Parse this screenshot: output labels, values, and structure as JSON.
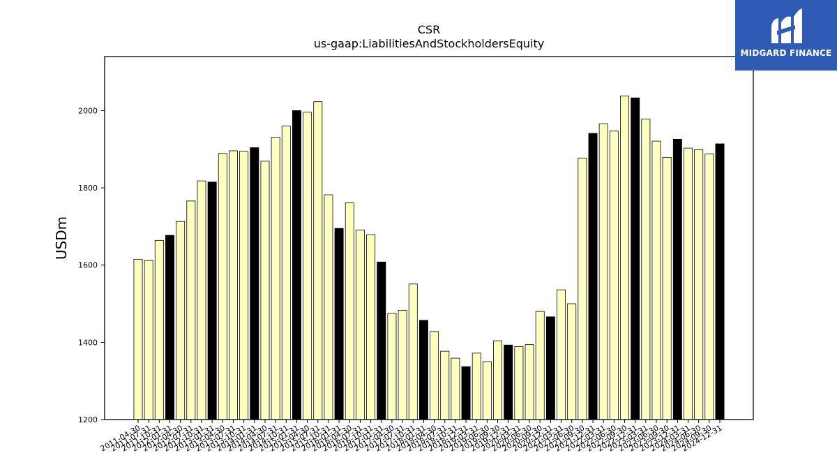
{
  "logo": {
    "text": "MIDGARD FINANCE"
  },
  "colors": {
    "highlight": "#000000",
    "normal": "#ffffc0",
    "edge": "#000000",
    "logo_bg": "#2f5bb4"
  },
  "chart_data": {
    "type": "bar",
    "title": "CSR",
    "subtitle": "us-gaap:LiabilitiesAndStockholdersEquity",
    "xlabel": "",
    "ylabel": "USDm",
    "ylim": [
      1200,
      2140
    ],
    "yticks": [
      1200,
      1400,
      1600,
      1800,
      2000
    ],
    "grid": false,
    "categories": [
      "2011-04-30",
      "2011-07-31",
      "2011-10-31",
      "2012-01-31",
      "2012-04-30",
      "2012-07-31",
      "2012-10-31",
      "2013-01-31",
      "2013-04-30",
      "2013-07-31",
      "2013-10-31",
      "2014-01-31",
      "2014-04-30",
      "2014-07-31",
      "2014-10-31",
      "2015-01-31",
      "2015-04-30",
      "2015-07-31",
      "2015-10-31",
      "2016-01-31",
      "2016-04-30",
      "2016-07-31",
      "2016-10-31",
      "2017-01-31",
      "2017-04-30",
      "2017-07-31",
      "2017-10-31",
      "2018-01-31",
      "2018-04-30",
      "2018-07-31",
      "2018-10-31",
      "2018-12-31",
      "2019-03-31",
      "2019-06-30",
      "2019-09-30",
      "2019-12-31",
      "2020-03-31",
      "2020-06-30",
      "2020-09-30",
      "2020-12-31",
      "2021-03-31",
      "2021-06-30",
      "2021-09-30",
      "2021-12-31",
      "2022-03-31",
      "2022-06-30",
      "2022-09-30",
      "2022-12-31",
      "2023-03-31",
      "2023-06-30",
      "2023-09-30",
      "2023-12-31",
      "2024-03-31",
      "2024-06-30",
      "2024-09-30",
      "2024-12-31"
    ],
    "values": [
      1615,
      1612,
      1664,
      1677,
      1713,
      1766,
      1818,
      1815,
      1889,
      1896,
      1895,
      1904,
      1869,
      1931,
      1960,
      2000,
      1996,
      2023,
      1782,
      1695,
      1761,
      1691,
      1679,
      1608,
      1475,
      1483,
      1551,
      1457,
      1428,
      1377,
      1359,
      1337,
      1372,
      1350,
      1404,
      1393,
      1389,
      1394,
      1480,
      1466,
      1536,
      1500,
      1877,
      1941,
      1966,
      1947,
      2038,
      2033,
      1978,
      1921,
      1879,
      1926,
      1903,
      1899,
      1888,
      1914
    ],
    "highlighted_categories": [
      "2012-01-31",
      "2013-01-31",
      "2014-01-31",
      "2015-01-31",
      "2016-01-31",
      "2017-01-31",
      "2018-01-31",
      "2018-12-31",
      "2019-12-31",
      "2020-12-31",
      "2021-12-31",
      "2022-12-31",
      "2023-12-31",
      "2024-12-31"
    ]
  }
}
